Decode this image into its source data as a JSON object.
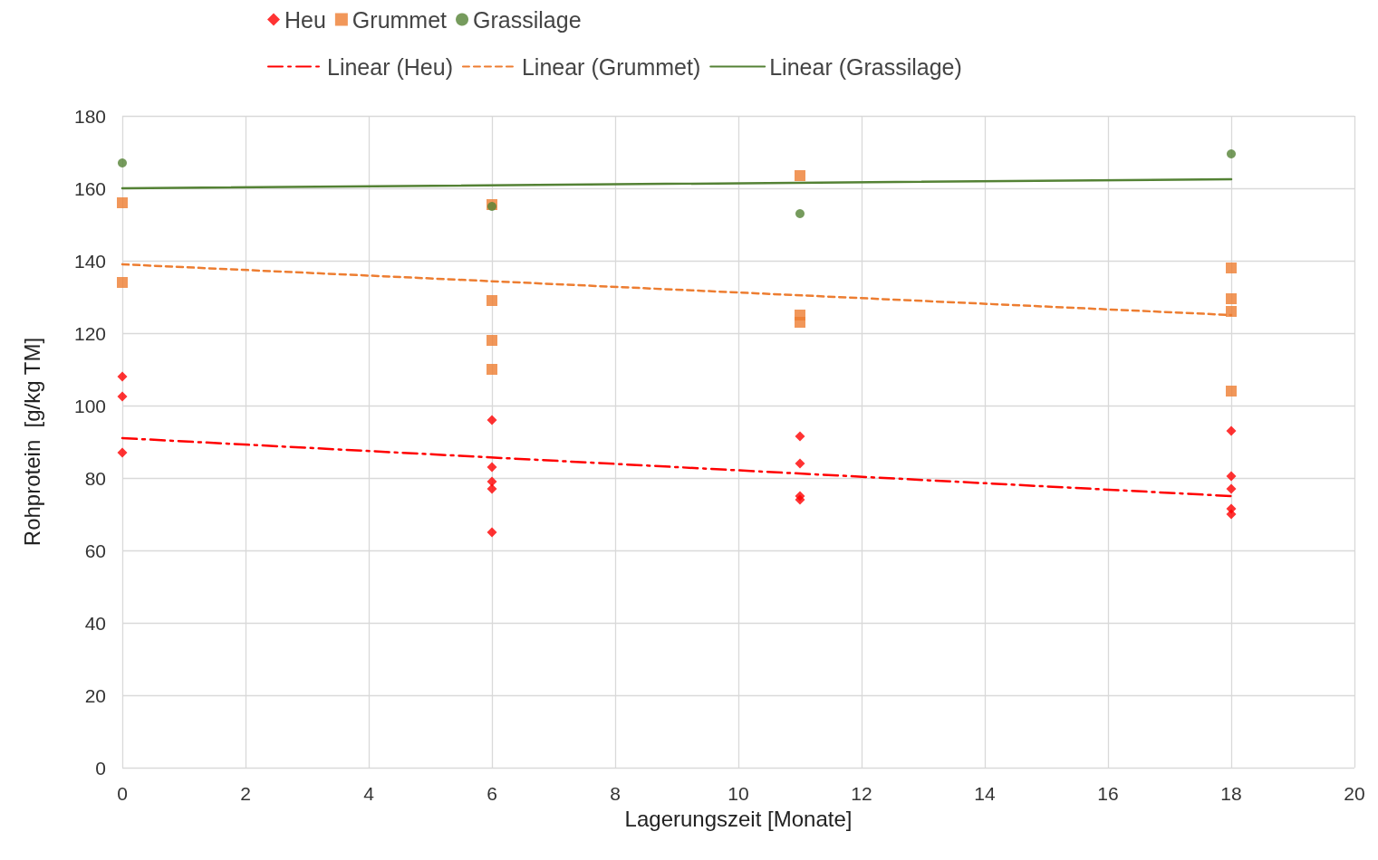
{
  "chart_data": {
    "type": "scatter",
    "xlabel": "Lagerungszeit [Monate]",
    "ylabel": "Rohprotein  [g/kg TM]",
    "xlim": [
      0,
      20
    ],
    "xticks": [
      0,
      2,
      4,
      6,
      8,
      10,
      12,
      14,
      16,
      18,
      20
    ],
    "ylim": [
      0,
      180
    ],
    "yticks": [
      0,
      20,
      40,
      60,
      80,
      100,
      120,
      140,
      160,
      180
    ],
    "grid": true,
    "legend": "top",
    "series": [
      {
        "name": "Heu",
        "type": "scatter",
        "marker": "diamond",
        "color": "#ff0000",
        "x": [
          0,
          0,
          0,
          6,
          6,
          6,
          6,
          6,
          11,
          11,
          11,
          11,
          18,
          18,
          18,
          18,
          18
        ],
        "values": [
          108,
          102.5,
          87,
          96,
          83,
          79,
          77,
          65,
          91.5,
          84,
          75,
          74,
          93,
          80.5,
          77,
          71.5,
          70
        ]
      },
      {
        "name": "Grummet",
        "type": "scatter",
        "marker": "square",
        "color": "#ed7d31",
        "x": [
          0,
          0,
          6,
          6,
          6,
          6,
          11,
          11,
          11,
          18,
          18,
          18,
          18
        ],
        "values": [
          156,
          134,
          155.5,
          129,
          118,
          110,
          163.5,
          125,
          123,
          138,
          129.5,
          126,
          104
        ]
      },
      {
        "name": "Grassilage",
        "type": "scatter",
        "marker": "circle",
        "color": "#548235",
        "x": [
          0,
          6,
          11,
          18
        ],
        "values": [
          167,
          155,
          153,
          169.5
        ]
      },
      {
        "name": "Linear (Heu)",
        "type": "line",
        "marker": "none",
        "line_style": "dashdot",
        "color": "#ff0000",
        "x": [
          0,
          18
        ],
        "values": [
          91,
          75
        ]
      },
      {
        "name": "Linear (Grummet)",
        "type": "line",
        "marker": "none",
        "line_style": "dashed",
        "color": "#ed7d31",
        "x": [
          0,
          18
        ],
        "values": [
          139,
          125
        ]
      },
      {
        "name": "Linear (Grassilage)",
        "type": "line",
        "marker": "none",
        "line_style": "solid",
        "color": "#548235",
        "x": [
          0,
          18
        ],
        "values": [
          160,
          162.5
        ]
      }
    ]
  }
}
